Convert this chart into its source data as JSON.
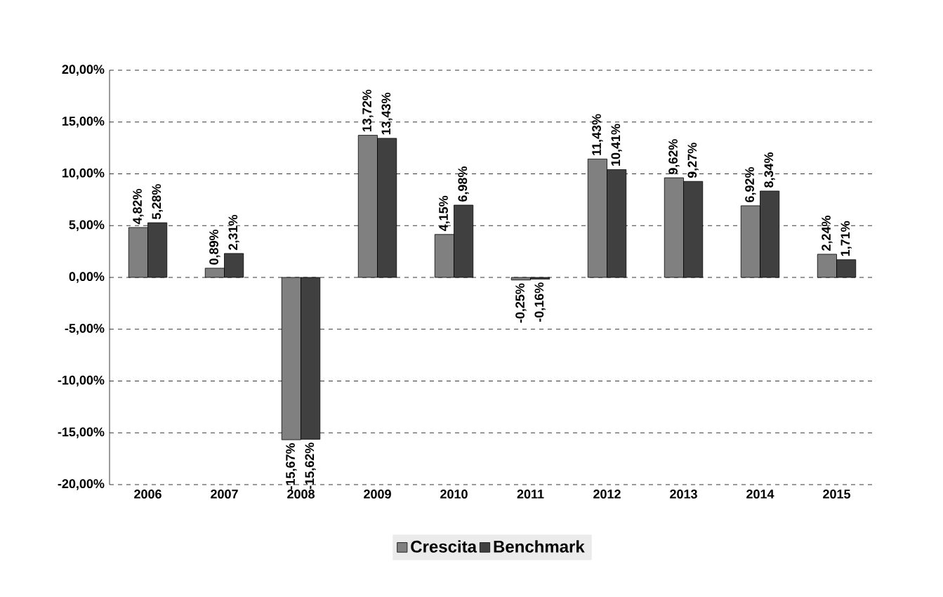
{
  "chart_data": {
    "type": "bar",
    "categories": [
      "2006",
      "2007",
      "2008",
      "2009",
      "2010",
      "2011",
      "2012",
      "2013",
      "2014",
      "2015"
    ],
    "series": [
      {
        "name": "Crescita",
        "color": "#808080",
        "values": [
          4.82,
          0.89,
          -15.67,
          13.72,
          4.15,
          -0.25,
          11.43,
          9.62,
          6.92,
          2.24
        ],
        "value_labels": [
          "4,82%",
          "0,89%",
          "-15,67%",
          "13,72%",
          "4,15%",
          "-0,25%",
          "11,43%",
          "9,62%",
          "6,92%",
          "2,24%"
        ]
      },
      {
        "name": "Benchmark",
        "color": "#404040",
        "values": [
          5.28,
          2.31,
          -15.62,
          13.43,
          6.98,
          -0.16,
          10.41,
          9.27,
          8.34,
          1.71
        ],
        "value_labels": [
          "5,28%",
          "2,31%",
          "-15,62%",
          "13,43%",
          "6,98%",
          "-0,16%",
          "10,41%",
          "9,27%",
          "8,34%",
          "1,71%"
        ]
      }
    ],
    "ylim": [
      -20,
      20
    ],
    "yticks": [
      {
        "value": -20,
        "label": "-20,00%"
      },
      {
        "value": -15,
        "label": "-15,00%"
      },
      {
        "value": -10,
        "label": "-10,00%"
      },
      {
        "value": -5,
        "label": "-5,00%"
      },
      {
        "value": 0,
        "label": "0,00%"
      },
      {
        "value": 5,
        "label": "5,00%"
      },
      {
        "value": 10,
        "label": "10,00%"
      },
      {
        "value": 15,
        "label": "15,00%"
      },
      {
        "value": 20,
        "label": "20,00%"
      }
    ],
    "grid": "y",
    "legend": "bottom"
  }
}
